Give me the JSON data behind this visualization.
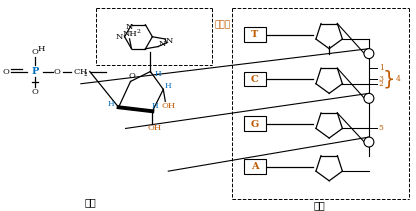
{
  "fig_width": 4.16,
  "fig_height": 2.11,
  "dpi": 100,
  "bg_color": "#ffffff",
  "text_color": "#000000",
  "blue_color": "#0070c0",
  "orange_color": "#c05a00",
  "fig1_label": "图一",
  "fig2_label": "图二",
  "adenine_label": "腺嘌呤",
  "bases": [
    "T",
    "C",
    "G",
    "A"
  ],
  "nh2": "NH",
  "nh2_sub": "2"
}
